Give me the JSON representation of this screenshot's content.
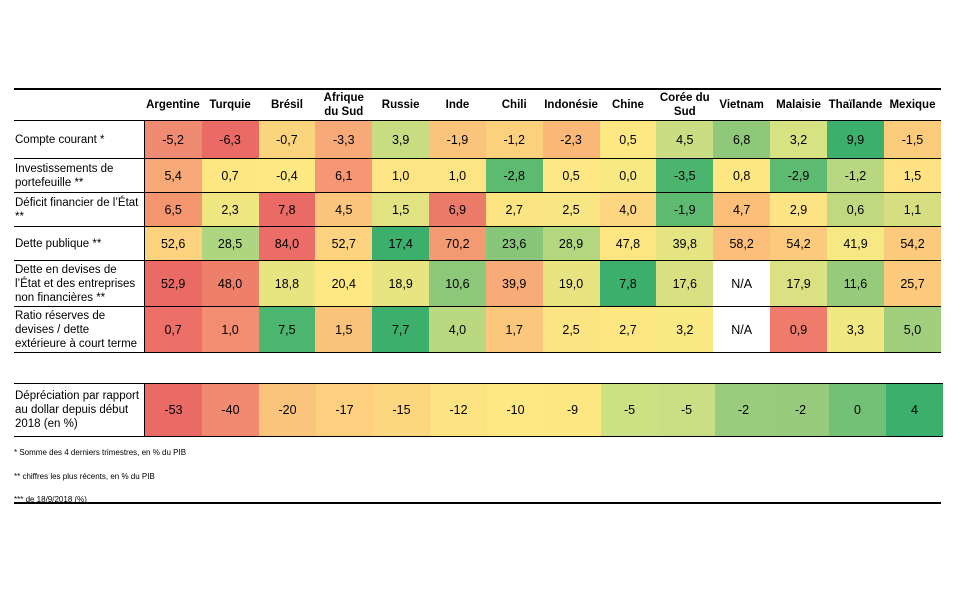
{
  "columns": [
    "Argentine",
    "Turquie",
    "Brésil",
    "Afrique du Sud",
    "Russie",
    "Inde",
    "Chili",
    "Indonésie",
    "Chine",
    "Corée du Sud",
    "Vietnam",
    "Malaisie",
    "Thaïlande",
    "Mexique"
  ],
  "rows": [
    {
      "label": "Compte courant *",
      "values": [
        "-5,2",
        "-6,3",
        "-0,7",
        "-3,3",
        "3,9",
        "-1,9",
        "-1,2",
        "-2,3",
        "0,5",
        "4,5",
        "6,8",
        "3,2",
        "9,9",
        "-1,5"
      ],
      "colors": [
        "#f08b73",
        "#ea6b66",
        "#fbd47e",
        "#f7aa77",
        "#c8dc82",
        "#fac47b",
        "#fcd17e",
        "#f9b778",
        "#fde884",
        "#cadd83",
        "#8fc87b",
        "#d7e283",
        "#3caf6c",
        "#fccc7d"
      ]
    },
    {
      "label": "Investissements de portefeuille **",
      "values": [
        "5,4",
        "0,7",
        "-0,4",
        "6,1",
        "1,0",
        "1,0",
        "-2,8",
        "0,5",
        "0,0",
        "-3,5",
        "0,8",
        "-2,9",
        "-1,2",
        "1,5"
      ],
      "colors": [
        "#f7a978",
        "#fee683",
        "#fde884",
        "#f59674",
        "#fee583",
        "#fee583",
        "#5cba71",
        "#fee784",
        "#f8e983",
        "#4bb56e",
        "#fee683",
        "#5cba71",
        "#b9d780",
        "#fee283"
      ]
    },
    {
      "label": "Déficit financier de l’État **",
      "values": [
        "6,5",
        "2,3",
        "7,8",
        "4,5",
        "1,5",
        "6,9",
        "2,7",
        "2,5",
        "4,0",
        "-1,9",
        "4,7",
        "2,9",
        "0,6",
        "1,1"
      ],
      "colors": [
        "#f3966f",
        "#efe682",
        "#ea6b66",
        "#fdc47d",
        "#e1e382",
        "#ec7a69",
        "#fce483",
        "#f7e683",
        "#fed580",
        "#5fba71",
        "#fbbf7a",
        "#fde383",
        "#c0d981",
        "#d5df82"
      ]
    },
    {
      "label": "Dette publique **",
      "values": [
        "52,6",
        "28,5",
        "84,0",
        "52,7",
        "17,4",
        "70,2",
        "23,6",
        "28,9",
        "47,8",
        "39,8",
        "58,2",
        "54,2",
        "41,9",
        "54,2"
      ],
      "colors": [
        "#fdd37f",
        "#aed680",
        "#ec6d67",
        "#fdd37f",
        "#3caf6c",
        "#f39a72",
        "#88c67a",
        "#b2d77f",
        "#fde582",
        "#e4e482",
        "#fbbe7b",
        "#fcca7d",
        "#f6e883",
        "#fcca7d"
      ]
    },
    {
      "label": "Dette en devises de l’État et des entreprises non financières **",
      "values": [
        "52,9",
        "48,0",
        "18,8",
        "20,4",
        "18,9",
        "10,6",
        "39,9",
        "19,0",
        "7,8",
        "17,6",
        "N/A",
        "17,9",
        "11,6",
        "25,7"
      ],
      "colors": [
        "#ea6b66",
        "#ee7f6b",
        "#e7e482",
        "#fde883",
        "#e7e482",
        "#8cc77a",
        "#f7ab77",
        "#e8e482",
        "#3caf6c",
        "#d8e082",
        "#ffffff",
        "#dbe182",
        "#97cb7c",
        "#fdc97c"
      ]
    },
    {
      "label": "Ratio réserves de devises / dette extérieure à court terme",
      "values": [
        "0,7",
        "1,0",
        "7,5",
        "1,5",
        "7,7",
        "4,0",
        "1,7",
        "2,5",
        "2,7",
        "3,2",
        "N/A",
        "0,9",
        "3,3",
        "5,0"
      ],
      "colors": [
        "#ec6f68",
        "#f28d71",
        "#4cb56f",
        "#fbc27c",
        "#3caf6c",
        "#bad880",
        "#fbc77d",
        "#fde483",
        "#fee783",
        "#f9e983",
        "#ffffff",
        "#ee7b6b",
        "#f2e882",
        "#a1cf7e"
      ]
    }
  ],
  "depreciation": {
    "label": "Dépréciation par rapport au dollar depuis début 2018 (en %)",
    "values": [
      "-53",
      "-40",
      "-20",
      "-17",
      "-15",
      "-12",
      "-10",
      "-9",
      "-5",
      "-5",
      "-2",
      "-2",
      "0",
      "4"
    ],
    "colors": [
      "#ea6b66",
      "#f28a71",
      "#fbc47c",
      "#fcd07f",
      "#fdd680",
      "#fee383",
      "#fee883",
      "#fde783",
      "#cce084",
      "#c8df83",
      "#99cc7c",
      "#98cc7c",
      "#72c176",
      "#3caf6c"
    ]
  },
  "notes": [
    "* Somme des 4 derniers trimestres, en % du PIB",
    "** chiffres les plus récents, en % du PIB",
    "*** de 18/9/2018 (%)"
  ]
}
